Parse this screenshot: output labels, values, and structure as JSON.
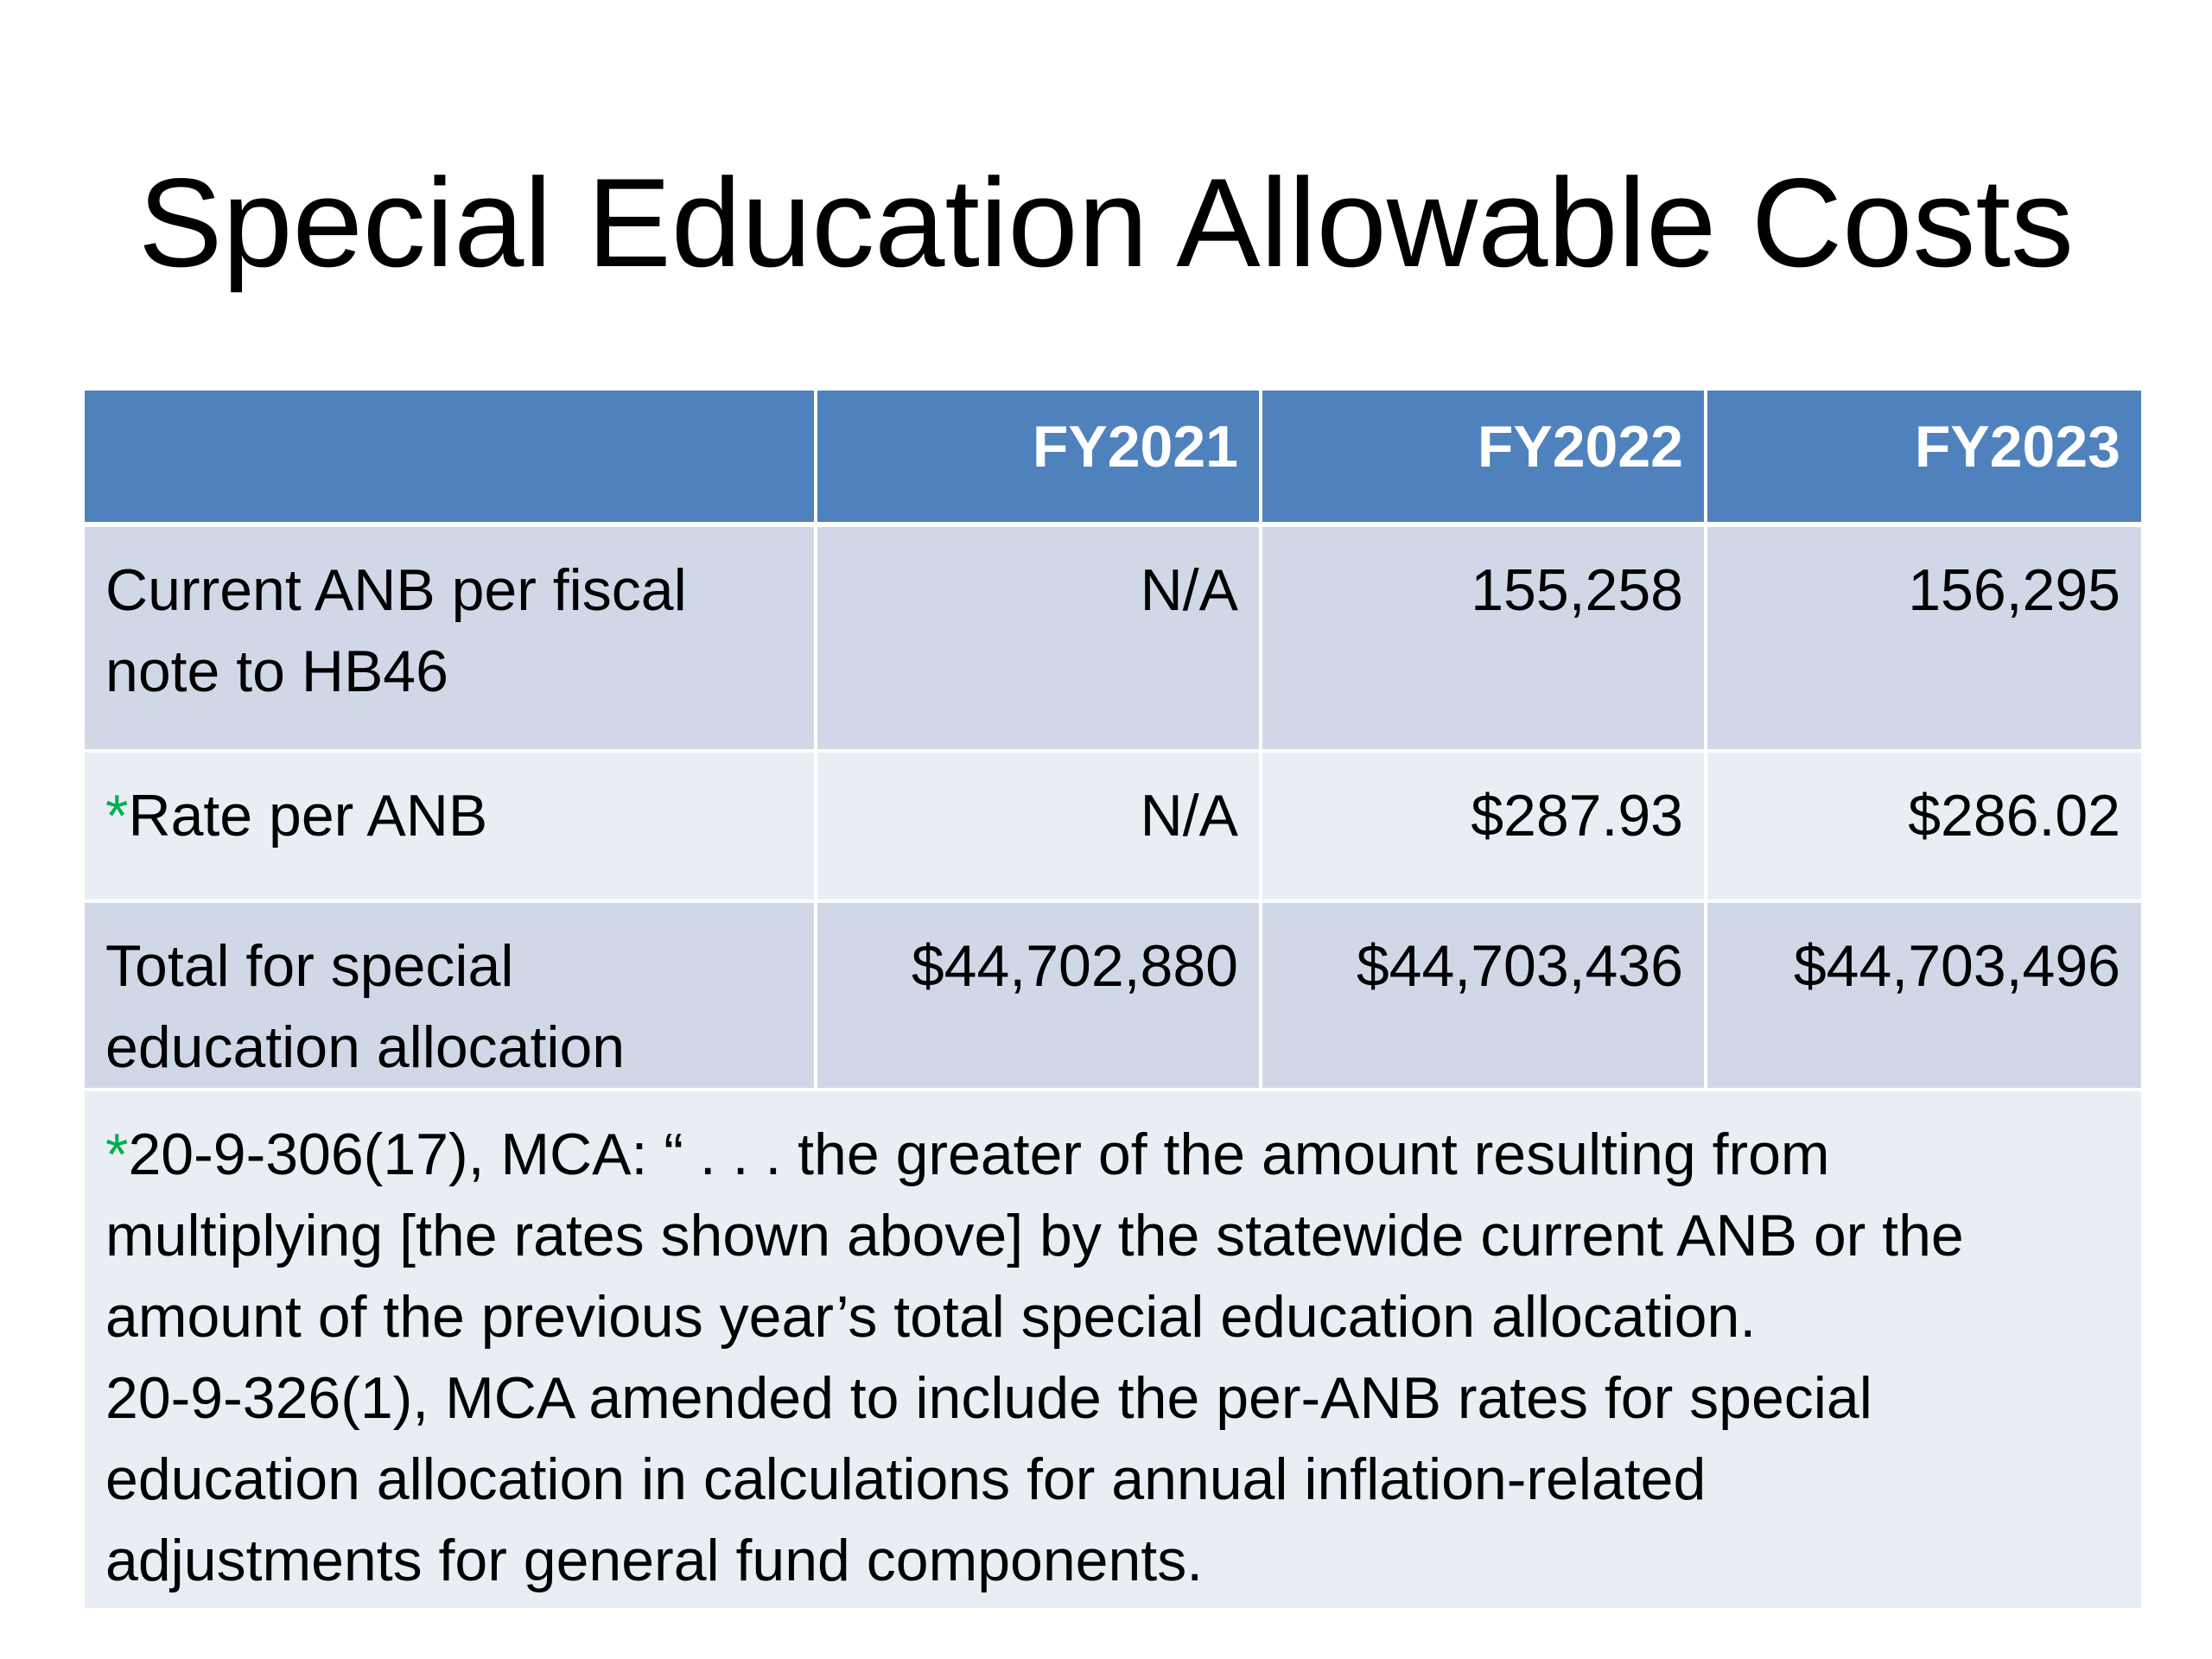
{
  "title": "Special Education Allowable Costs",
  "table": {
    "headers": [
      "",
      "FY2021",
      "FY2022",
      "FY2023"
    ],
    "rows": [
      {
        "label_lines": [
          "Current ANB per fiscal",
          "note to HB46"
        ],
        "values": [
          "N/A",
          "155,258",
          "156,295"
        ]
      },
      {
        "asterisk": "*",
        "label": "Rate per ANB",
        "values": [
          "N/A",
          "$287.93",
          "$286.02"
        ]
      },
      {
        "label_lines": [
          "Total for special",
          "education allocation"
        ],
        "values": [
          "$44,702,880",
          "$44,703,436",
          "$44,703,496"
        ]
      }
    ],
    "footnote": {
      "asterisk": "*",
      "lines": [
        "20-9-306(17), MCA: “ . . . the greater of the amount resulting from",
        "multiplying [the rates shown above] by the statewide current ANB or the",
        "amount of the previous year’s total special education allocation.",
        "20-9-326(1), MCA amended to include the per-ANB rates for special",
        "education allocation in calculations for annual inflation-related",
        "adjustments for general fund components."
      ]
    }
  },
  "colors": {
    "header_fill": "#4f81bd",
    "row_dark": "#d0d8e8",
    "row_light": "#e9edf4",
    "asterisk": "#00b050"
  }
}
